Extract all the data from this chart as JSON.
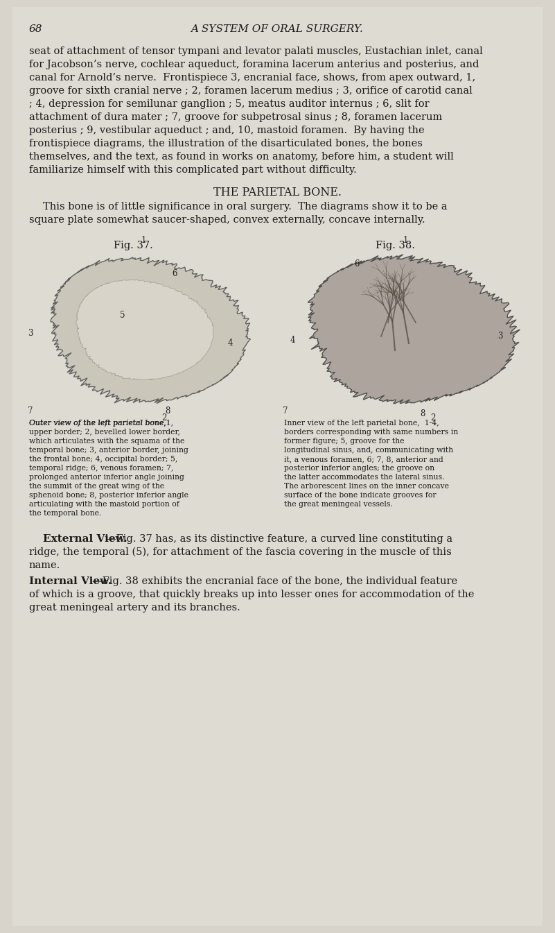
{
  "bg_color": "#e8e6e0",
  "page_color": "#dedad2",
  "text_color": "#1a1a1a",
  "page_number": "68",
  "header_title": "A SYSTEM OF ORAL SURGERY.",
  "body_paragraph": "seat of attachment of tensor tympani and levator palati muscles, Eustachian inlet, canal for Jacobson’s nerve, cochlear aqueduct, foramina lacerum anterius and posterius, and canal for Arnold’s nerve.  Frontispiece 3, encranial face, shows, from apex outward, 1, groove for sixth cranial nerve ; 2, foramen lacerum medius ; 3, orifice of carotid canal ; 4, depression for semilunar ganglion ; 5, meatus auditor internus ; 6, slit for attachment of dura mater ; 7, groove for subpetrosal sinus ; 8, foramen lacerum posterius ; 9, vestibular aqueduct ; and, 10, mastoid foramen.  By having the frontispiece diagrams, the illustration of the disarticulated bones, the bones themselves, and the text, as found in works on anatomy, before him, a student will familiarize himself with this complicated part without difficulty.",
  "section_title": "THE PARIETAL BONE.",
  "section_intro": "This bone is of little significance in oral surgery.  The diagrams show it to be a square plate somewhat saucer-shaped, convex externally, concave internally.",
  "fig37_title": "Fig. 37.",
  "fig38_title": "Fig. 38.",
  "fig37_caption": "Outer view of the left parietal bone. 1, upper border; 2, bevelled lower border, which articulates with the squama of the temporal bone; 3, anterior border, joining the frontal bone; 4, occipital border; 5, temporal ridge; 6, venous foramen; 7, prolonged anterior inferior angle joining the summit of the great wing of the sphenoid bone; 8, posterior inferior angle articulating with the mastoid portion of the temporal bone.",
  "fig38_caption": "Inner view of the left parietal bone. 1-4, borders corresponding with same numbers in former figure; 5, groove for the longitudinal sinus, and, communicating with it, a venous foramen, 6; 7, 8, anterior and posterior inferior angles; the groove on the latter accommodates the lateral sinus. The arborescent lines on the inner concave surface of the bone indicate grooves for the great meningeal vessels.",
  "external_view_heading": "External View.",
  "external_view_text": "—Fig. 37 has, as its distinctive feature, a curved line constituting a ridge, the temporal (5), for attachment of the fascia covering in the muscle of this name.",
  "internal_view_heading": "Internal View.",
  "internal_view_text": "—Fig. 38 exhibits the encranial face of the bone, the individual feature of which is a groove, that quickly breaks up into lesser ones for accommodation of the great meningeal artery and its branches.",
  "fig37_caption_bold": "Outer view of the left parietal bone,",
  "fig38_caption_bold": "Inner view of the left parietal bone,"
}
